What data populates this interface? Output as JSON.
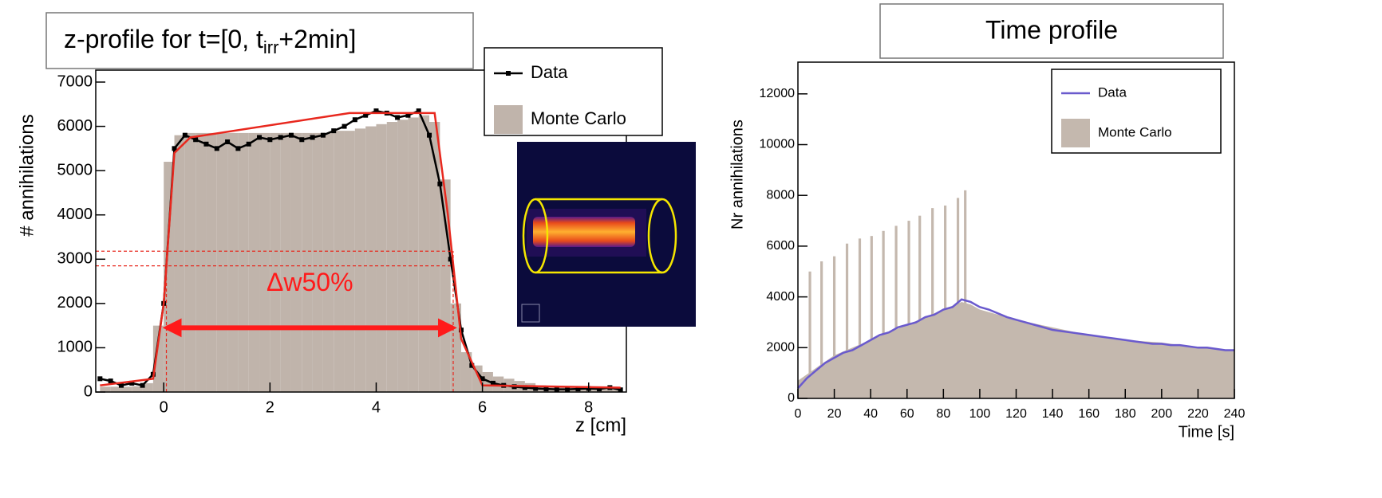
{
  "chart_data": [
    {
      "type": "line",
      "title": [
        "z-profile for t=[0, t",
        "irr",
        "+2min]"
      ],
      "xlabel": "z [cm]",
      "ylabel": "# annihilations",
      "xlim": [
        -1.28,
        8.71
      ],
      "ylim": [
        0,
        7270
      ],
      "xticks": [
        0,
        2,
        4,
        6,
        8
      ],
      "yticks": [
        0,
        1000,
        2000,
        3000,
        4000,
        5000,
        6000,
        7000
      ],
      "legend": "top-right",
      "series": [
        {
          "name": "Data",
          "color": "#000000",
          "marker": true,
          "x": [
            -1.2,
            -1.0,
            -0.8,
            -0.6,
            -0.4,
            -0.2,
            0.0,
            0.2,
            0.4,
            0.6,
            0.8,
            1.0,
            1.2,
            1.4,
            1.6,
            1.8,
            2.0,
            2.2,
            2.4,
            2.6,
            2.8,
            3.0,
            3.2,
            3.4,
            3.6,
            3.8,
            4.0,
            4.2,
            4.4,
            4.6,
            4.8,
            5.0,
            5.2,
            5.4,
            5.6,
            5.8,
            6.0,
            6.2,
            6.4,
            6.6,
            6.8,
            7.0,
            7.2,
            7.4,
            7.6,
            7.8,
            8.0,
            8.2,
            8.4,
            8.6
          ],
          "values": [
            300,
            250,
            150,
            200,
            150,
            400,
            2000,
            5500,
            5800,
            5700,
            5600,
            5500,
            5650,
            5500,
            5600,
            5750,
            5700,
            5750,
            5800,
            5700,
            5750,
            5800,
            5900,
            6000,
            6150,
            6250,
            6350,
            6300,
            6200,
            6250,
            6350,
            5800,
            4700,
            3000,
            1400,
            600,
            300,
            200,
            150,
            120,
            100,
            80,
            70,
            60,
            60,
            70,
            80,
            70,
            100,
            50
          ]
        },
        {
          "name": "Monte Carlo",
          "color": "#c0b4ab",
          "kind": "histogram",
          "bins": [
            -1.2,
            -1.0,
            -0.8,
            -0.6,
            -0.4,
            -0.2,
            0.0,
            0.2,
            0.4,
            0.6,
            0.8,
            1.0,
            1.2,
            1.4,
            1.6,
            1.8,
            2.0,
            2.2,
            2.4,
            2.6,
            2.8,
            3.0,
            3.2,
            3.4,
            3.6,
            3.8,
            4.0,
            4.2,
            4.4,
            4.6,
            4.8,
            5.0,
            5.2,
            5.4,
            5.6,
            5.8,
            6.0,
            6.2,
            6.4,
            6.6,
            6.8,
            7.0,
            7.2,
            7.4,
            7.6,
            7.8,
            8.0,
            8.2,
            8.4,
            8.6
          ],
          "values": [
            120,
            120,
            120,
            130,
            200,
            1500,
            5200,
            5800,
            5850,
            5850,
            5850,
            5850,
            5850,
            5850,
            5850,
            5850,
            5850,
            5850,
            5850,
            5850,
            5850,
            5850,
            5900,
            5900,
            5950,
            6000,
            6050,
            6100,
            6150,
            6200,
            6250,
            6100,
            4800,
            2000,
            900,
            600,
            450,
            350,
            300,
            250,
            200,
            150,
            120,
            100,
            100,
            100,
            100,
            100,
            100
          ]
        },
        {
          "color": "#e8281e",
          "x": [
            -1.2,
            -0.2,
            0.0,
            0.2,
            0.5,
            3.5,
            5.1,
            5.35,
            5.6,
            6.0,
            8.6
          ],
          "values": [
            150,
            300,
            2000,
            5400,
            5750,
            6300,
            6300,
            4000,
            1200,
            150,
            100
          ]
        }
      ],
      "ref_lines": {
        "color": "#e8281e",
        "y": [
          3180,
          2850
        ],
        "x": [
          0.05,
          5.45
        ]
      },
      "arrow": {
        "color": "#ff1a1a",
        "x": [
          0.05,
          5.45
        ],
        "y": 1450
      },
      "annotation": "Δw50%"
    },
    {
      "type": "line",
      "title": "Time profile",
      "xlabel": "Time [s]",
      "ylabel": "Nr annihilations",
      "xlim": [
        0,
        240
      ],
      "ylim": [
        0,
        13250
      ],
      "xticks": [
        0,
        20,
        40,
        60,
        80,
        100,
        120,
        140,
        160,
        180,
        200,
        220,
        240
      ],
      "yticks": [
        0,
        2000,
        4000,
        6000,
        8000,
        10000,
        12000
      ],
      "legend": "top-right",
      "series": [
        {
          "name": "Data",
          "color": "#6a5acd",
          "x": [
            0,
            5,
            10,
            15,
            20,
            25,
            30,
            35,
            40,
            45,
            50,
            55,
            60,
            65,
            70,
            75,
            80,
            85,
            90,
            95,
            100,
            105,
            110,
            115,
            120,
            125,
            130,
            135,
            140,
            145,
            150,
            155,
            160,
            165,
            170,
            175,
            180,
            185,
            190,
            195,
            200,
            205,
            210,
            215,
            220,
            225,
            230,
            235,
            240
          ],
          "values": [
            400,
            800,
            1100,
            1400,
            1600,
            1800,
            1900,
            2100,
            2300,
            2500,
            2600,
            2800,
            2900,
            3000,
            3200,
            3300,
            3500,
            3600,
            3900,
            3800,
            3600,
            3500,
            3350,
            3200,
            3100,
            3000,
            2900,
            2800,
            2700,
            2650,
            2600,
            2550,
            2500,
            2450,
            2400,
            2350,
            2300,
            2250,
            2200,
            2150,
            2150,
            2100,
            2100,
            2050,
            2000,
            2000,
            1950,
            1900,
            1900
          ]
        },
        {
          "name": "Monte Carlo",
          "color": "#c4b8ae",
          "kind": "area",
          "x": [
            0,
            10,
            20,
            30,
            40,
            50,
            60,
            70,
            80,
            90,
            95,
            100,
            120,
            140,
            160,
            180,
            200,
            220,
            240
          ],
          "values": [
            700,
            1200,
            1700,
            2000,
            2300,
            2600,
            2900,
            3200,
            3500,
            3800,
            3700,
            3500,
            3100,
            2800,
            2500,
            2300,
            2200,
            2000,
            1900
          ],
          "spikes": {
            "x": [
              6.6,
              13,
              20,
              27,
              34,
              40.5,
              47,
              54,
              61,
              67,
              74,
              81,
              88,
              92
            ],
            "values": [
              5000,
              5400,
              5600,
              6100,
              6300,
              6400,
              6600,
              6800,
              7000,
              7200,
              7500,
              7600,
              7900,
              8200
            ]
          }
        }
      ]
    }
  ]
}
